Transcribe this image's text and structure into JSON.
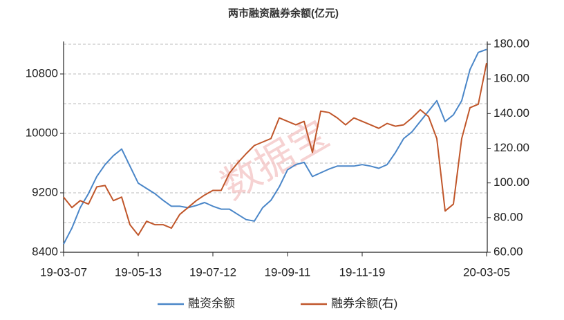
{
  "chart_data": {
    "type": "line",
    "title": "两市融资融券余额(亿元)",
    "watermark": "数据宝",
    "categories": [
      "19-03-07",
      null,
      null,
      null,
      null,
      null,
      null,
      null,
      null,
      "19-05-13",
      null,
      null,
      null,
      null,
      null,
      null,
      null,
      null,
      "19-07-12",
      null,
      null,
      null,
      null,
      null,
      null,
      null,
      null,
      "19-09-11",
      null,
      null,
      null,
      null,
      null,
      null,
      null,
      null,
      "19-11-19",
      null,
      null,
      null,
      null,
      null,
      null,
      null,
      null,
      null,
      null,
      null,
      null,
      null,
      null,
      "20-03-05"
    ],
    "series": [
      {
        "name": "融资余额",
        "color": "#4a86c8",
        "axis": "y",
        "values": [
          8510,
          8725,
          9000,
          9190,
          9420,
          9580,
          9700,
          9790,
          9560,
          9330,
          9260,
          9190,
          9100,
          9020,
          9020,
          9000,
          9030,
          9070,
          9020,
          8980,
          8980,
          8910,
          8840,
          8820,
          9000,
          9100,
          9280,
          9510,
          9580,
          9610,
          9420,
          9470,
          9520,
          9560,
          9560,
          9560,
          9580,
          9560,
          9530,
          9580,
          9740,
          9930,
          10020,
          10160,
          10300,
          10440,
          10160,
          10250,
          10440,
          10860,
          11090,
          11130
        ]
      },
      {
        "name": "融券余额(右)",
        "color": "#c0562a",
        "axis": "y2",
        "values": [
          91.8,
          85.8,
          89.8,
          87.8,
          97.7,
          98.5,
          89.8,
          91.8,
          75.9,
          69.9,
          77.9,
          75.9,
          75.9,
          73.9,
          81.8,
          85.8,
          89.8,
          93.0,
          95.7,
          95.7,
          105.7,
          111.6,
          116.8,
          121.6,
          123.6,
          125.6,
          137.5,
          135.5,
          133.5,
          135.5,
          117.6,
          141.4,
          140.6,
          137.5,
          133.5,
          137.5,
          135.5,
          133.5,
          131.5,
          134.3,
          132.7,
          133.5,
          137.5,
          142.2,
          138.3,
          125.6,
          83.8,
          87.8,
          125.6,
          143.4,
          145.4,
          169.2
        ]
      }
    ],
    "ylim": [
      8400,
      11200
    ],
    "yticks": [
      8400,
      9200,
      10000,
      10800
    ],
    "ygrid": [
      8800,
      9200,
      9600,
      10000,
      10400,
      10800,
      11200
    ],
    "y2lim": [
      60,
      180
    ],
    "y2ticks": [
      {
        "value": 60,
        "label": "60.00"
      },
      {
        "value": 80,
        "label": "80.00"
      },
      {
        "value": 100,
        "label": "100.00"
      },
      {
        "value": 120,
        "label": "120.00"
      },
      {
        "value": 140,
        "label": "140.00"
      },
      {
        "value": 160,
        "label": "160.00"
      },
      {
        "value": 180,
        "label": "180.00"
      }
    ],
    "legend": "bottom"
  }
}
